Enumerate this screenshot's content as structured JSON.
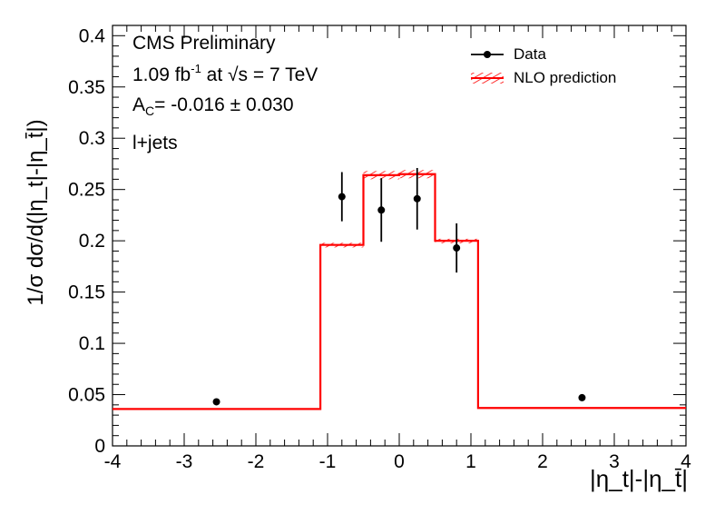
{
  "chart_data": {
    "type": "histogram",
    "title": "",
    "xlabel": "|η_t|-|η_t̄|",
    "ylabel": "1/σ dσ/d(|η_t|-|η_t̄|)",
    "xlim": [
      -4,
      4
    ],
    "ylim": [
      0,
      0.41
    ],
    "x_ticks": [
      "-4",
      "-3",
      "-2",
      "-1",
      "0",
      "1",
      "2",
      "3",
      "4"
    ],
    "x_tick_values": [
      -4,
      -3,
      -2,
      -1,
      0,
      1,
      2,
      3,
      4
    ],
    "y_ticks": [
      "0",
      "0.05",
      "0.1",
      "0.15",
      "0.2",
      "0.25",
      "0.3",
      "0.35",
      "0.4"
    ],
    "y_tick_values": [
      0,
      0.05,
      0.1,
      0.15,
      0.2,
      0.25,
      0.3,
      0.35,
      0.4
    ],
    "annotations": {
      "line1": "CMS Preliminary",
      "lumi_value": "1.09 fb",
      "lumi_exp": "-1",
      "energy": "at √s = 7 TeV",
      "ac_label": "A",
      "ac_sub": "C",
      "ac_value": "= -0.016 ± 0.030",
      "channel": "l+jets"
    },
    "legend": {
      "placement": "top-right",
      "entries": [
        {
          "label": "Data",
          "style": "marker-errorbar"
        },
        {
          "label": "NLO prediction",
          "style": "red-hatched-band"
        }
      ]
    },
    "series": [
      {
        "name": "NLO prediction",
        "color": "#ff0000",
        "style": "step",
        "bins": [
          {
            "lo": -4.0,
            "hi": -1.1,
            "value": 0.036,
            "unc": 0.0
          },
          {
            "lo": -1.1,
            "hi": -0.5,
            "value": 0.196,
            "unc": 0.002
          },
          {
            "lo": -0.5,
            "hi": 0.0,
            "value": 0.264,
            "unc": 0.004
          },
          {
            "lo": 0.0,
            "hi": 0.5,
            "value": 0.265,
            "unc": 0.004
          },
          {
            "lo": 0.5,
            "hi": 1.1,
            "value": 0.2,
            "unc": 0.002
          },
          {
            "lo": 1.1,
            "hi": 4.0,
            "value": 0.037,
            "unc": 0.0
          }
        ]
      },
      {
        "name": "Data",
        "color": "#000000",
        "style": "points",
        "points": [
          {
            "x": -2.55,
            "y": 0.043,
            "err": 0.0
          },
          {
            "x": -0.8,
            "y": 0.243,
            "err": 0.024
          },
          {
            "x": -0.25,
            "y": 0.23,
            "err": 0.031
          },
          {
            "x": 0.25,
            "y": 0.241,
            "err": 0.03
          },
          {
            "x": 0.8,
            "y": 0.193,
            "err": 0.024
          },
          {
            "x": 2.55,
            "y": 0.047,
            "err": 0.0
          }
        ]
      }
    ]
  }
}
